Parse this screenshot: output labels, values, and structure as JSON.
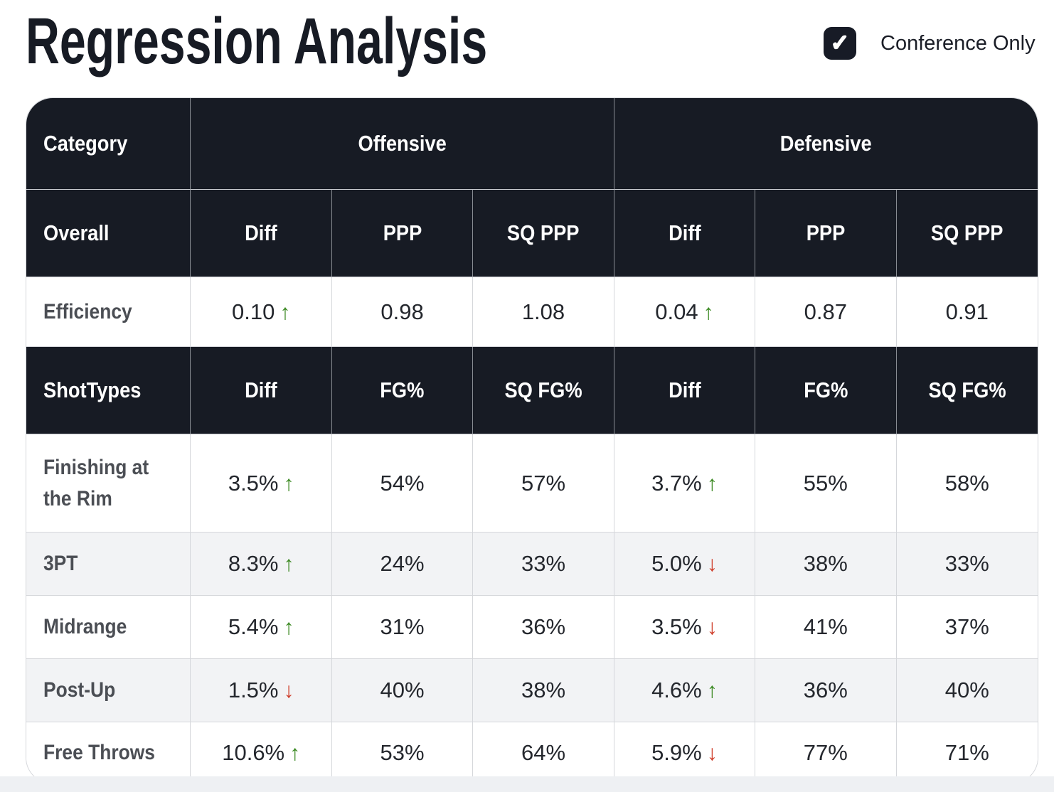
{
  "page": {
    "title": "Regression Analysis",
    "checkbox": {
      "label": "Conference Only",
      "checked": true
    }
  },
  "icons": {
    "checkmark": "✓",
    "up_arrow": "↑",
    "down_arrow": "↓"
  },
  "colors": {
    "header_bg": "#171b24",
    "up_arrow": "#3c8a23",
    "down_arrow": "#cf3d2a",
    "zebra_row": "#f2f3f5",
    "checkbox_bg": "#171b26"
  },
  "table": {
    "group_header": {
      "category": "Category",
      "offensive": "Offensive",
      "defensive": "Defensive"
    },
    "overall_header": {
      "label": "Overall",
      "cols": [
        "Diff",
        "PPP",
        "SQ PPP",
        "Diff",
        "PPP",
        "SQ PPP"
      ]
    },
    "efficiency_row": {
      "label": "Efficiency",
      "cells": [
        {
          "text": "0.10",
          "arrow": "up"
        },
        {
          "text": "0.98"
        },
        {
          "text": "1.08"
        },
        {
          "text": "0.04",
          "arrow": "up"
        },
        {
          "text": "0.87"
        },
        {
          "text": "0.91"
        }
      ]
    },
    "shottypes_header": {
      "label": "ShotTypes",
      "cols": [
        "Diff",
        "FG%",
        "SQ FG%",
        "Diff",
        "FG%",
        "SQ FG%"
      ]
    },
    "shot_rows": [
      {
        "label": "Finishing at the Rim",
        "cells": [
          {
            "text": "3.5%",
            "arrow": "up"
          },
          {
            "text": "54%"
          },
          {
            "text": "57%"
          },
          {
            "text": "3.7%",
            "arrow": "up"
          },
          {
            "text": "55%"
          },
          {
            "text": "58%"
          }
        ]
      },
      {
        "label": "3PT",
        "cells": [
          {
            "text": "8.3%",
            "arrow": "up"
          },
          {
            "text": "24%"
          },
          {
            "text": "33%"
          },
          {
            "text": "5.0%",
            "arrow": "down"
          },
          {
            "text": "38%"
          },
          {
            "text": "33%"
          }
        ]
      },
      {
        "label": "Midrange",
        "cells": [
          {
            "text": "5.4%",
            "arrow": "up"
          },
          {
            "text": "31%"
          },
          {
            "text": "36%"
          },
          {
            "text": "3.5%",
            "arrow": "down"
          },
          {
            "text": "41%"
          },
          {
            "text": "37%"
          }
        ]
      },
      {
        "label": "Post-Up",
        "cells": [
          {
            "text": "1.5%",
            "arrow": "down"
          },
          {
            "text": "40%"
          },
          {
            "text": "38%"
          },
          {
            "text": "4.6%",
            "arrow": "up"
          },
          {
            "text": "36%"
          },
          {
            "text": "40%"
          }
        ]
      },
      {
        "label": "Free Throws",
        "cells": [
          {
            "text": "10.6%",
            "arrow": "up"
          },
          {
            "text": "53%"
          },
          {
            "text": "64%"
          },
          {
            "text": "5.9%",
            "arrow": "down"
          },
          {
            "text": "77%"
          },
          {
            "text": "71%"
          }
        ]
      }
    ]
  }
}
